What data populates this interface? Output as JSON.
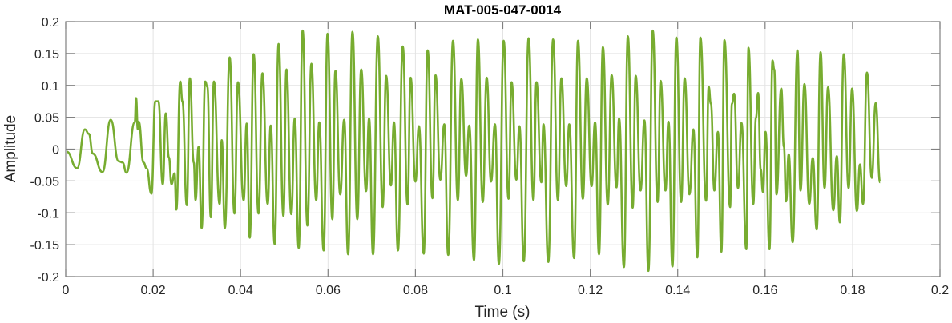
{
  "chart_data": {
    "type": "line",
    "title": "MAT-005-047-0014",
    "xlabel": "Time (s)",
    "ylabel": "Amplitude",
    "xlim": [
      0,
      0.2
    ],
    "ylim": [
      -0.2,
      0.2
    ],
    "grid": true,
    "line_color": "#77AC30",
    "x_ticks": [
      0,
      0.02,
      0.04,
      0.06,
      0.08,
      0.1,
      0.12,
      0.14,
      0.16,
      0.18,
      0.2
    ],
    "x_tick_labels": [
      "0",
      "0.02",
      "0.04",
      "0.06",
      "0.08",
      "0.1",
      "0.12",
      "0.14",
      "0.16",
      "0.18",
      "0.2"
    ],
    "y_ticks": [
      -0.2,
      -0.15,
      -0.1,
      -0.05,
      0,
      0.05,
      0.1,
      0.15,
      0.2
    ],
    "y_tick_labels": [
      "-0.2",
      "-0.15",
      "-0.1",
      "-0.05",
      "0",
      "0.05",
      "0.1",
      "0.15",
      "0.2"
    ],
    "series": [
      {
        "points": [
          [
            0.0002,
            -0.004
          ],
          [
            0.0026,
            -0.03
          ],
          [
            0.0044,
            0.031
          ],
          [
            0.0053,
            0.024
          ],
          [
            0.0062,
            -0.007
          ],
          [
            0.0084,
            -0.036
          ],
          [
            0.0103,
            0.046
          ],
          [
            0.0121,
            -0.019
          ],
          [
            0.013,
            -0.021
          ],
          [
            0.0139,
            -0.037
          ],
          [
            0.0158,
            0.042
          ],
          [
            0.0161,
            0.08
          ],
          [
            0.0165,
            0.031
          ],
          [
            0.0167,
            0.043
          ],
          [
            0.0178,
            -0.021
          ],
          [
            0.0185,
            -0.03
          ],
          [
            0.0196,
            -0.07
          ],
          [
            0.0205,
            0.075
          ],
          [
            0.0212,
            0.075
          ],
          [
            0.0222,
            -0.055
          ],
          [
            0.0229,
            0.056
          ],
          [
            0.0236,
            -0.013
          ],
          [
            0.0242,
            -0.055
          ],
          [
            0.0249,
            -0.038
          ],
          [
            0.0253,
            -0.095
          ],
          [
            0.0262,
            0.106
          ],
          [
            0.0267,
            0.075
          ],
          [
            0.0277,
            -0.088
          ],
          [
            0.0284,
            0.111
          ],
          [
            0.0293,
            -0.021
          ],
          [
            0.0297,
            -0.08
          ],
          [
            0.0304,
            0.004
          ],
          [
            0.0311,
            -0.124
          ],
          [
            0.0319,
            0.106
          ],
          [
            0.0324,
            0.098
          ],
          [
            0.0332,
            -0.107
          ],
          [
            0.0339,
            0.106
          ],
          [
            0.0352,
            -0.086
          ],
          [
            0.0357,
            0.014
          ],
          [
            0.0364,
            -0.124
          ],
          [
            0.0375,
            0.144
          ],
          [
            0.0386,
            -0.101
          ],
          [
            0.0394,
            0.105
          ],
          [
            0.0407,
            -0.08
          ],
          [
            0.0414,
            0.04
          ],
          [
            0.0421,
            -0.139
          ],
          [
            0.043,
            0.149
          ],
          [
            0.0441,
            -0.101
          ],
          [
            0.045,
            0.119
          ],
          [
            0.0462,
            -0.086
          ],
          [
            0.0469,
            0.037
          ],
          [
            0.0478,
            -0.149
          ],
          [
            0.0487,
            0.165
          ],
          [
            0.0498,
            -0.105
          ],
          [
            0.0505,
            0.125
          ],
          [
            0.0516,
            -0.102
          ],
          [
            0.0524,
            0.048
          ],
          [
            0.0533,
            -0.155
          ],
          [
            0.0542,
            0.186
          ],
          [
            0.0553,
            -0.12
          ],
          [
            0.0562,
            0.134
          ],
          [
            0.0573,
            -0.08
          ],
          [
            0.058,
            0.042
          ],
          [
            0.059,
            -0.159
          ],
          [
            0.0599,
            0.181
          ],
          [
            0.061,
            -0.11
          ],
          [
            0.0617,
            0.123
          ],
          [
            0.0628,
            -0.071
          ],
          [
            0.0637,
            0.046
          ],
          [
            0.0646,
            -0.165
          ],
          [
            0.0656,
            0.184
          ],
          [
            0.0667,
            -0.11
          ],
          [
            0.0676,
            0.125
          ],
          [
            0.0687,
            -0.066
          ],
          [
            0.0694,
            0.048
          ],
          [
            0.0703,
            -0.165
          ],
          [
            0.0714,
            0.177
          ],
          [
            0.0725,
            -0.091
          ],
          [
            0.0733,
            0.115
          ],
          [
            0.0744,
            -0.057
          ],
          [
            0.0751,
            0.042
          ],
          [
            0.076,
            -0.159
          ],
          [
            0.0771,
            0.161
          ],
          [
            0.0782,
            -0.087
          ],
          [
            0.0789,
            0.112
          ],
          [
            0.08,
            -0.051
          ],
          [
            0.0808,
            0.036
          ],
          [
            0.0819,
            -0.164
          ],
          [
            0.0828,
            0.155
          ],
          [
            0.0839,
            -0.077
          ],
          [
            0.0846,
            0.116
          ],
          [
            0.0857,
            -0.048
          ],
          [
            0.0866,
            0.039
          ],
          [
            0.0875,
            -0.166
          ],
          [
            0.0886,
            0.17
          ],
          [
            0.0897,
            -0.08
          ],
          [
            0.0905,
            0.11
          ],
          [
            0.0916,
            -0.042
          ],
          [
            0.0923,
            0.037
          ],
          [
            0.0934,
            -0.174
          ],
          [
            0.0943,
            0.172
          ],
          [
            0.0954,
            -0.083
          ],
          [
            0.0963,
            0.112
          ],
          [
            0.0973,
            -0.051
          ],
          [
            0.0982,
            0.039
          ],
          [
            0.0991,
            -0.18
          ],
          [
            0.1002,
            0.17
          ],
          [
            0.1013,
            -0.078
          ],
          [
            0.102,
            0.105
          ],
          [
            0.1031,
            -0.048
          ],
          [
            0.1038,
            0.036
          ],
          [
            0.1048,
            -0.176
          ],
          [
            0.1059,
            0.174
          ],
          [
            0.107,
            -0.08
          ],
          [
            0.1077,
            0.105
          ],
          [
            0.1088,
            -0.052
          ],
          [
            0.1093,
            0.039
          ],
          [
            0.1104,
            -0.177
          ],
          [
            0.1115,
            0.172
          ],
          [
            0.1126,
            -0.08
          ],
          [
            0.1134,
            0.111
          ],
          [
            0.1145,
            -0.058
          ],
          [
            0.1152,
            0.039
          ],
          [
            0.1163,
            -0.171
          ],
          [
            0.1172,
            0.17
          ],
          [
            0.1183,
            -0.078
          ],
          [
            0.1192,
            0.111
          ],
          [
            0.1203,
            -0.058
          ],
          [
            0.1211,
            0.042
          ],
          [
            0.122,
            -0.165
          ],
          [
            0.1229,
            0.16
          ],
          [
            0.124,
            -0.087
          ],
          [
            0.1249,
            0.116
          ],
          [
            0.126,
            -0.06
          ],
          [
            0.1266,
            0.048
          ],
          [
            0.1277,
            -0.185
          ],
          [
            0.1286,
            0.177
          ],
          [
            0.1297,
            -0.092
          ],
          [
            0.1304,
            0.115
          ],
          [
            0.1315,
            -0.065
          ],
          [
            0.1324,
            0.045
          ],
          [
            0.1333,
            -0.191
          ],
          [
            0.1343,
            0.186
          ],
          [
            0.1354,
            -0.083
          ],
          [
            0.1361,
            0.107
          ],
          [
            0.1372,
            -0.065
          ],
          [
            0.1379,
            0.043
          ],
          [
            0.1388,
            -0.184
          ],
          [
            0.1397,
            0.175
          ],
          [
            0.1408,
            -0.083
          ],
          [
            0.1416,
            0.111
          ],
          [
            0.1427,
            -0.071
          ],
          [
            0.1436,
            0.031
          ],
          [
            0.1445,
            -0.17
          ],
          [
            0.1452,
            0.175
          ],
          [
            0.1465,
            -0.081
          ],
          [
            0.1471,
            0.098
          ],
          [
            0.1476,
            0.071
          ],
          [
            0.1484,
            -0.065
          ],
          [
            0.1492,
            0.027
          ],
          [
            0.15,
            -0.161
          ],
          [
            0.1507,
            0.171
          ],
          [
            0.152,
            -0.091
          ],
          [
            0.1524,
            0.071
          ],
          [
            0.1529,
            0.087
          ],
          [
            0.1538,
            -0.061
          ],
          [
            0.1546,
            0.041
          ],
          [
            0.1557,
            -0.157
          ],
          [
            0.1562,
            0.159
          ],
          [
            0.1573,
            -0.086
          ],
          [
            0.1579,
            0.049
          ],
          [
            0.1584,
            0.088
          ],
          [
            0.159,
            -0.032
          ],
          [
            0.1595,
            -0.067
          ],
          [
            0.1601,
            0.027
          ],
          [
            0.161,
            -0.157
          ],
          [
            0.1617,
            0.139
          ],
          [
            0.1621,
            0.125
          ],
          [
            0.1626,
            -0.071
          ],
          [
            0.1637,
            0.095
          ],
          [
            0.1643,
            0.004
          ],
          [
            0.1648,
            -0.082
          ],
          [
            0.1654,
            -0.008
          ],
          [
            0.1663,
            -0.146
          ],
          [
            0.1674,
            0.155
          ],
          [
            0.1681,
            -0.065
          ],
          [
            0.169,
            0.102
          ],
          [
            0.1701,
            -0.086
          ],
          [
            0.1709,
            -0.014
          ],
          [
            0.1718,
            -0.126
          ],
          [
            0.1727,
            0.152
          ],
          [
            0.1736,
            -0.061
          ],
          [
            0.1744,
            0.097
          ],
          [
            0.1756,
            -0.096
          ],
          [
            0.1764,
            -0.011
          ],
          [
            0.1771,
            -0.115
          ],
          [
            0.178,
            0.149
          ],
          [
            0.1791,
            -0.061
          ],
          [
            0.1799,
            0.095
          ],
          [
            0.181,
            -0.097
          ],
          [
            0.1817,
            -0.024
          ],
          [
            0.1824,
            -0.086
          ],
          [
            0.1833,
            0.12
          ],
          [
            0.1844,
            -0.045
          ],
          [
            0.1853,
            0.072
          ],
          [
            0.1863,
            -0.052
          ]
        ]
      }
    ]
  }
}
